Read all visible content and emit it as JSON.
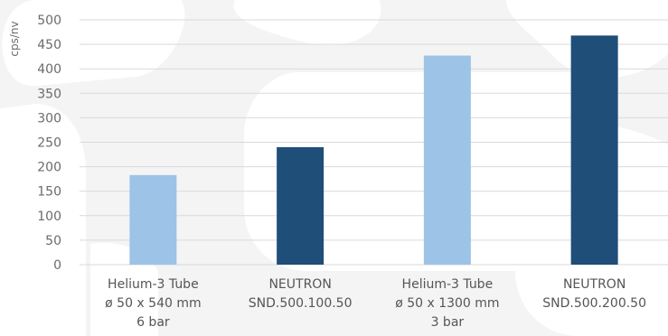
{
  "chart_data": {
    "type": "bar",
    "title": "",
    "xlabel": "",
    "ylabel": "cps/nv",
    "ylim": [
      0,
      500
    ],
    "yticks": [
      0,
      50,
      100,
      150,
      200,
      250,
      300,
      350,
      400,
      450,
      500
    ],
    "grid": true,
    "categories": [
      [
        "Helium-3 Tube",
        "ø 50 x 540 mm",
        "6 bar"
      ],
      [
        "NEUTRON",
        "SND.500.100.50"
      ],
      [
        "Helium-3 Tube",
        "ø 50 x 1300 mm",
        "3 bar"
      ],
      [
        "NEUTRON",
        "SND.500.200.50"
      ]
    ],
    "values": [
      183,
      240,
      427,
      468
    ],
    "bar_colors": [
      "#9dc3e6",
      "#1f4e79",
      "#9dc3e6",
      "#1f4e79"
    ]
  },
  "colors": {
    "background": "#f4f4f4",
    "background_shapes": "#ffffff",
    "gridline": "#d9d9d9",
    "axis_text": "#6b6b6b"
  }
}
